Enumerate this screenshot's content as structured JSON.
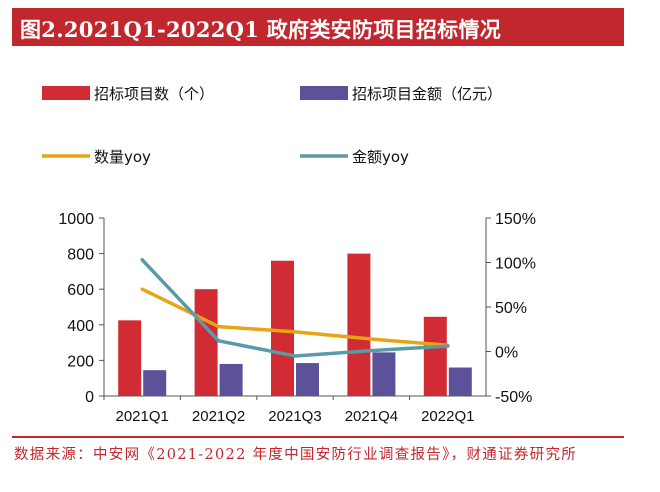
{
  "header": {
    "title": "图2.2021Q1-2022Q1 政府类安防项目招标情况"
  },
  "footer": {
    "source": "数据来源：中安网《2021-2022 年度中国安防行业调查报告》，财通证券研究所"
  },
  "colors": {
    "accent": "#c1272d",
    "count_bar": "#d12b34",
    "amount_bar": "#5b5299",
    "count_yoy_line": "#e8a317",
    "amount_yoy_line": "#5b9aa8"
  },
  "chart_data": {
    "type": "bar",
    "title": "",
    "categories": [
      "2021Q1",
      "2021Q2",
      "2021Q3",
      "2021Q4",
      "2022Q1"
    ],
    "series": [
      {
        "name": "招标项目数（个）",
        "type": "bar",
        "axis": "left",
        "values": [
          425,
          600,
          760,
          800,
          445
        ]
      },
      {
        "name": "招标项目金额（亿元）",
        "type": "bar",
        "axis": "left",
        "values": [
          145,
          180,
          185,
          245,
          160
        ]
      },
      {
        "name": "数量yoy",
        "type": "line",
        "axis": "right",
        "values": [
          70,
          28,
          22,
          14,
          7
        ]
      },
      {
        "name": "金额yoy",
        "type": "line",
        "axis": "right",
        "values": [
          103,
          12,
          -5,
          1,
          6
        ]
      }
    ],
    "left_axis": {
      "min": 0,
      "max": 1000,
      "ticks": [
        "0",
        "200",
        "400",
        "600",
        "800",
        "1000"
      ]
    },
    "right_axis": {
      "min": -50,
      "max": 150,
      "ticks": [
        "-50%",
        "0%",
        "50%",
        "100%",
        "150%"
      ]
    },
    "legend_position": "top",
    "grid": false
  }
}
